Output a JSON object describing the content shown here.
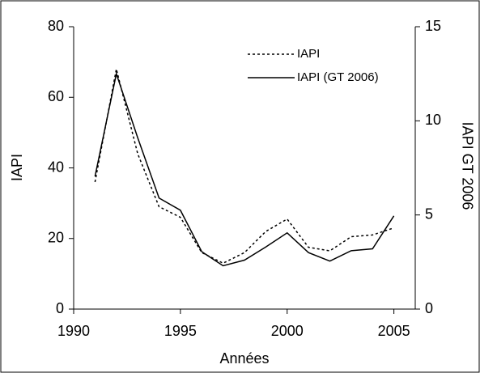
{
  "chart_data": {
    "type": "line",
    "x": [
      1991,
      1992,
      1993,
      1994,
      1995,
      1996,
      1997,
      1998,
      1999,
      2000,
      2001,
      2002,
      2003,
      2004,
      2005
    ],
    "series": [
      {
        "name": "IAPI",
        "color": "#000000",
        "dash": "dotted",
        "values": [
          36,
          68,
          44,
          29,
          26,
          16,
          13,
          16,
          22,
          25.5,
          17.5,
          16.5,
          20.5,
          21,
          23
        ]
      },
      {
        "name": "IAPI (GT 2006)",
        "color": "#000000",
        "dash": "solid",
        "axis": "y2",
        "values": [
          7.05,
          12.5,
          9.1,
          5.9,
          5.25,
          3.05,
          2.3,
          2.6,
          3.3,
          4.05,
          3.0,
          2.55,
          3.1,
          3.2,
          4.95
        ]
      }
    ],
    "xlabel": "Années",
    "ylabel": "IAPI",
    "y2label": "IAPI GT 2006",
    "xlim": [
      1990,
      2006
    ],
    "xticks": [
      1990,
      1995,
      2000,
      2005
    ],
    "ylim": [
      0,
      80
    ],
    "yticks": [
      0,
      20,
      40,
      60,
      80
    ],
    "y2lim": [
      0,
      15
    ],
    "y2ticks": [
      0,
      5,
      10,
      15
    ],
    "legend": "top-right"
  }
}
